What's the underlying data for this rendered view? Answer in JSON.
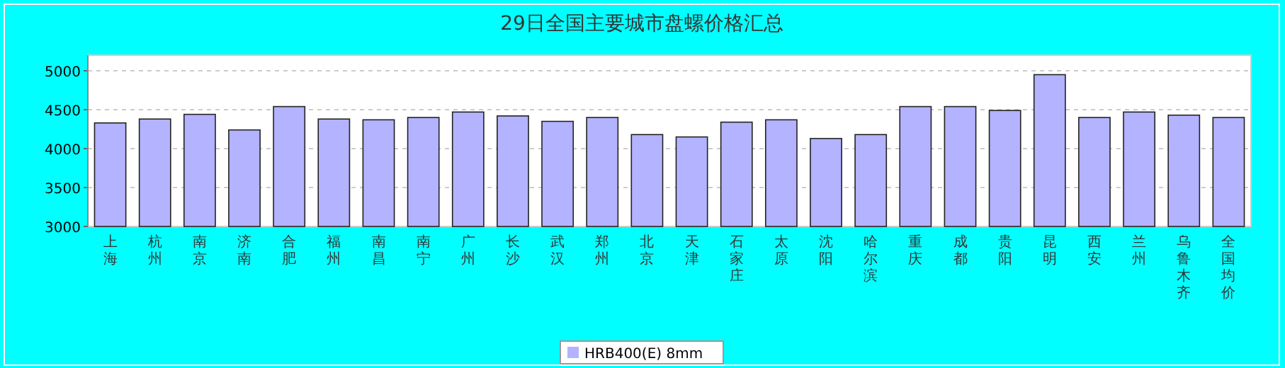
{
  "chart_data": {
    "type": "bar",
    "title": "29日全国主要城市盘螺价格汇总",
    "categories": [
      "上海",
      "杭州",
      "南京",
      "济南",
      "合肥",
      "福州",
      "南昌",
      "南宁",
      "广州",
      "长沙",
      "武汉",
      "郑州",
      "北京",
      "天津",
      "石家庄",
      "太原",
      "沈阳",
      "哈尔滨",
      "重庆",
      "成都",
      "贵阳",
      "昆明",
      "西安",
      "兰州",
      "乌鲁木齐",
      "全国均价"
    ],
    "series": [
      {
        "name": "HRB400(E) 8mm",
        "color": "#b3b3ff",
        "values": [
          4330,
          4380,
          4440,
          4240,
          4540,
          4380,
          4370,
          4400,
          4470,
          4420,
          4350,
          4400,
          4180,
          4150,
          4340,
          4370,
          4130,
          4180,
          4540,
          4540,
          4490,
          4950,
          4400,
          4470,
          4430,
          4400
        ]
      }
    ],
    "ylim": [
      3000,
      5200
    ],
    "yticks": [
      3000,
      3500,
      4000,
      4500,
      5000
    ],
    "grid": "y",
    "legend": "bottom"
  }
}
